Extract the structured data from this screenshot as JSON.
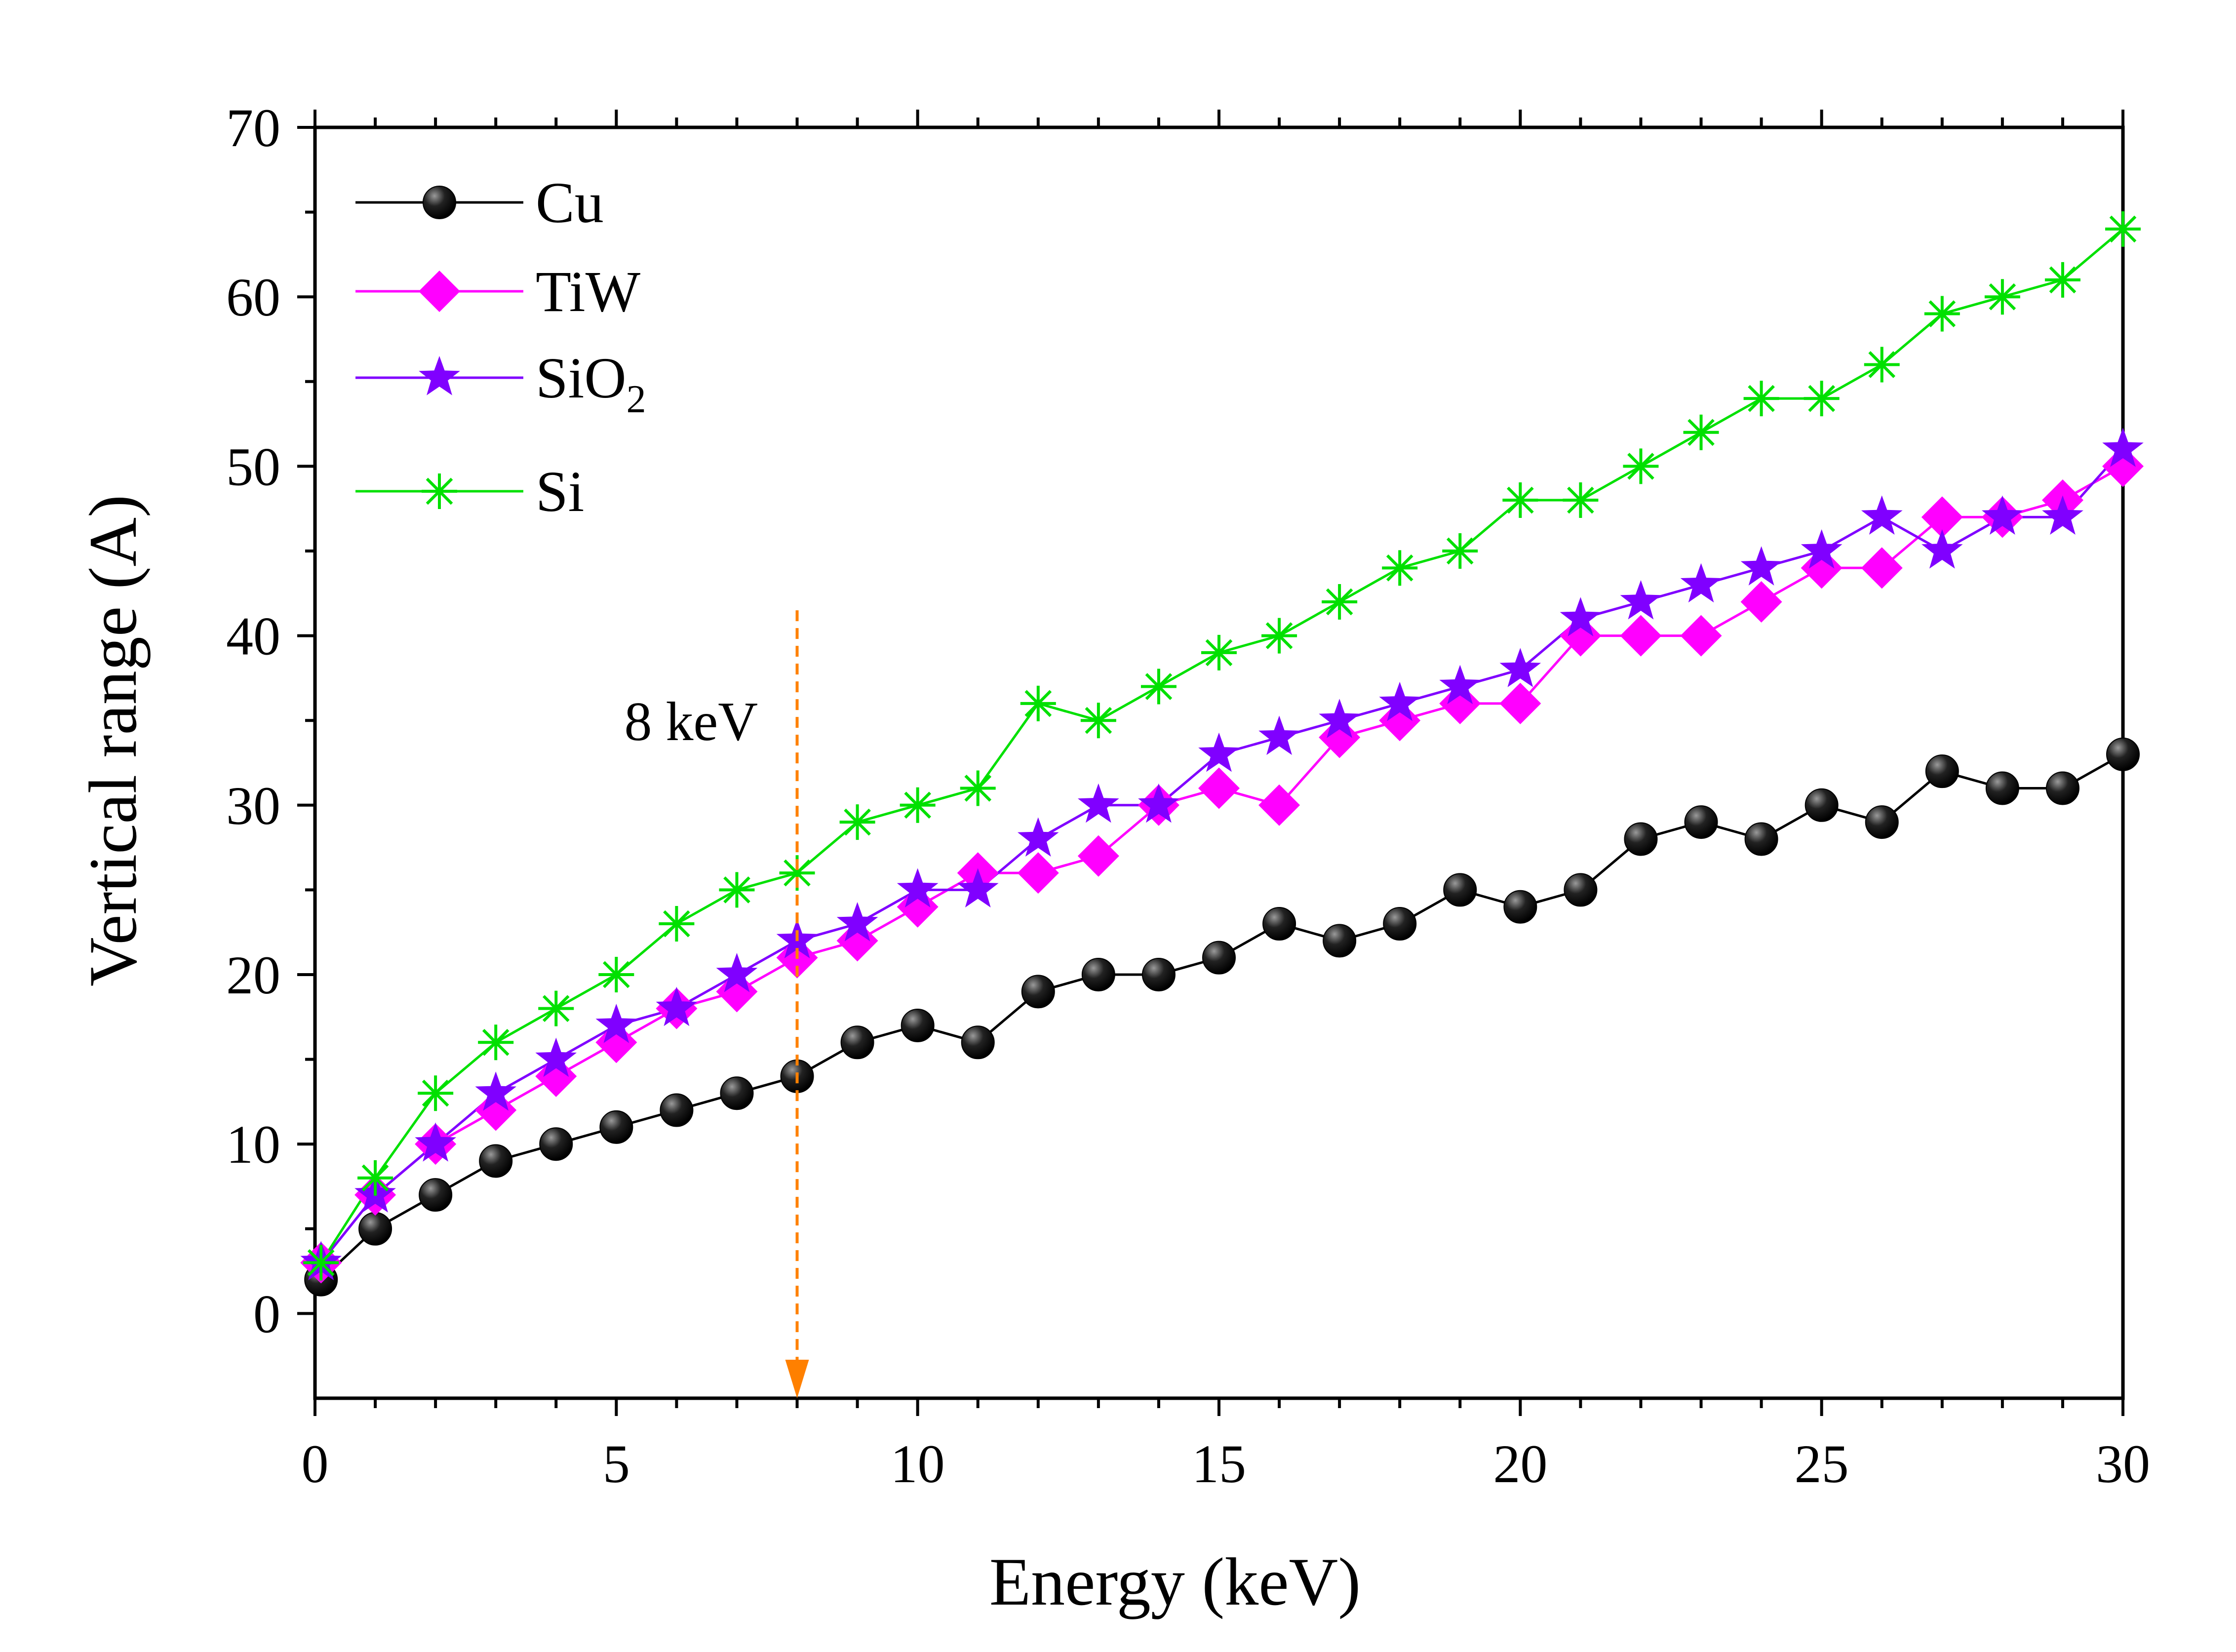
{
  "chart_data": {
    "type": "line",
    "xlabel": "Energy (keV)",
    "ylabel": "Vertical range (A)",
    "xlim": [
      0,
      30
    ],
    "ylim": [
      -5,
      70
    ],
    "xticks": [
      0,
      5,
      10,
      15,
      20,
      25,
      30
    ],
    "yticks": [
      0,
      10,
      20,
      30,
      40,
      50,
      60,
      70
    ],
    "legend_position": "top-left",
    "x": [
      0.1,
      1,
      2,
      3,
      4,
      5,
      6,
      7,
      8,
      9,
      10,
      11,
      12,
      13,
      14,
      15,
      16,
      17,
      18,
      19,
      20,
      21,
      22,
      23,
      24,
      25,
      26,
      27,
      28,
      29,
      30
    ],
    "series": [
      {
        "name": "Cu",
        "label_main": "Cu",
        "label_sub": "",
        "marker": "circle",
        "color": "#000000",
        "marker_color": "#111111",
        "values": [
          2,
          5,
          7,
          9,
          10,
          11,
          12,
          13,
          14,
          16,
          17,
          16,
          19,
          20,
          20,
          21,
          23,
          22,
          23,
          25,
          24,
          25,
          28,
          29,
          28,
          30,
          29,
          32,
          31,
          31,
          33
        ]
      },
      {
        "name": "TiW",
        "label_main": "TiW",
        "label_sub": "",
        "marker": "diamond",
        "color": "#ff00ff",
        "marker_color": "#ff00ff",
        "values": [
          3,
          7,
          10,
          12,
          14,
          16,
          18,
          19,
          21,
          22,
          24,
          26,
          26,
          27,
          30,
          31,
          30,
          34,
          35,
          36,
          36,
          40,
          40,
          40,
          42,
          44,
          44,
          47,
          47,
          48,
          50
        ]
      },
      {
        "name": "SiO2",
        "label_main": "SiO",
        "label_sub": "2",
        "marker": "star",
        "color": "#8000ff",
        "marker_color": "#8000ff",
        "values": [
          3,
          7,
          10,
          13,
          15,
          17,
          18,
          20,
          22,
          23,
          25,
          25,
          28,
          30,
          30,
          33,
          34,
          35,
          36,
          37,
          38,
          41,
          42,
          43,
          44,
          45,
          47,
          45,
          47,
          47,
          51
        ]
      },
      {
        "name": "Si",
        "label_main": "Si",
        "label_sub": "",
        "marker": "asterisk",
        "color": "#00e000",
        "marker_color": "#00e000",
        "values": [
          3,
          8,
          13,
          16,
          18,
          20,
          23,
          25,
          26,
          29,
          30,
          31,
          36,
          35,
          37,
          39,
          40,
          42,
          44,
          45,
          48,
          48,
          50,
          52,
          54,
          54,
          56,
          59,
          60,
          61,
          64
        ]
      }
    ],
    "annotations": [
      {
        "text": "8 keV",
        "text_x": 8,
        "text_y": 35,
        "arrow_x": 8,
        "arrow_y_from": 41.5,
        "arrow_y_to": -5,
        "color": "#ff8000"
      }
    ]
  }
}
